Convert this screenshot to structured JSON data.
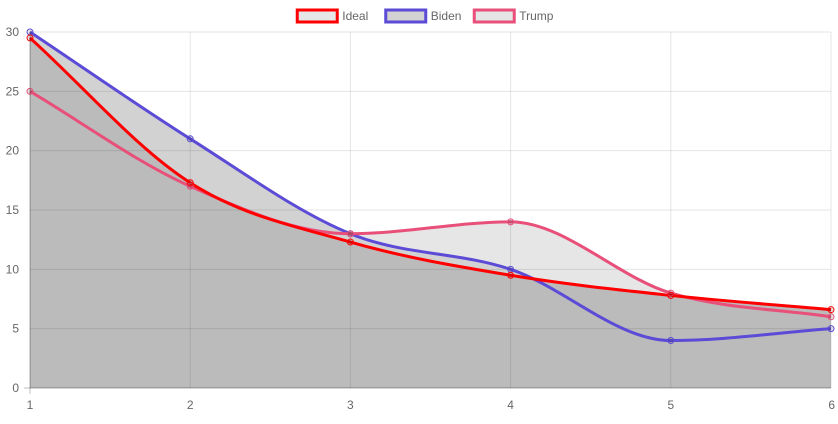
{
  "chart_data": {
    "type": "line",
    "x": [
      1,
      2,
      3,
      4,
      5,
      6
    ],
    "xlim": [
      1,
      6
    ],
    "ylim": [
      0,
      30
    ],
    "y_ticks": [
      0,
      5,
      10,
      15,
      20,
      25,
      30
    ],
    "x_ticks": [
      1,
      2,
      3,
      4,
      5,
      6
    ],
    "grid": true,
    "legend_position": "top-center",
    "title": "",
    "xlabel": "",
    "ylabel": "",
    "series": [
      {
        "name": "Ideal",
        "values": [
          29.5,
          17.3,
          12.3,
          9.5,
          7.8,
          6.6
        ],
        "color": "#ff0000",
        "fill": "#bbbbbb"
      },
      {
        "name": "Biden",
        "values": [
          30,
          21,
          13,
          10,
          4,
          5
        ],
        "color": "#5b4bd6",
        "fill": "#d2d2d2"
      },
      {
        "name": "Trump",
        "values": [
          25,
          17,
          13,
          14,
          8,
          6
        ],
        "color": "#e8507a",
        "fill": "#e6e6e6"
      }
    ]
  }
}
